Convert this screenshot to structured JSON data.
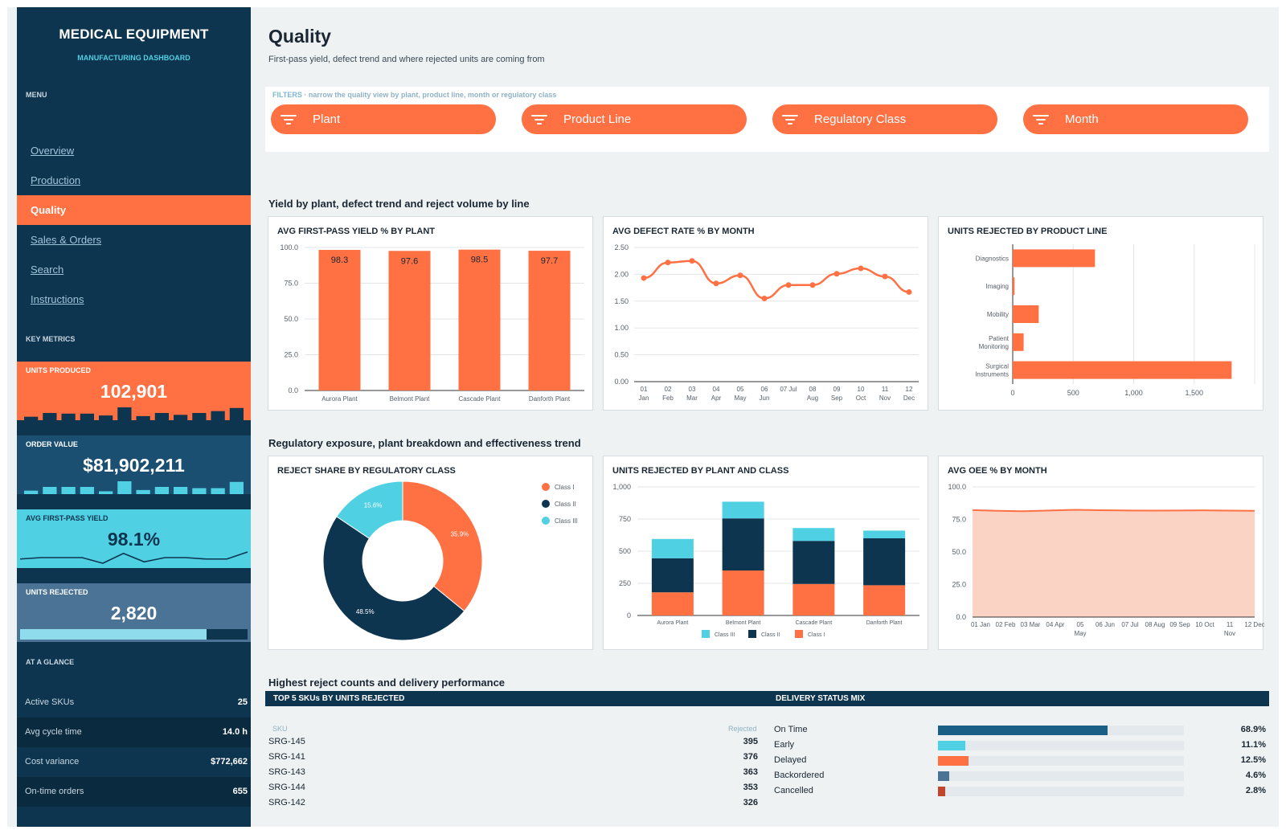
{
  "sidebar": {
    "brand_title": "MEDICAL EQUIPMENT",
    "brand_subtitle": "MANUFACTURING DASHBOARD",
    "menu_heading": "MENU",
    "nav": [
      "Overview",
      "Production",
      "Quality",
      "Sales & Orders",
      "Search",
      "Instructions"
    ],
    "active_nav": "Quality",
    "key_metrics_heading": "KEY METRICS",
    "kpis": {
      "units_produced": {
        "label": "UNITS PRODUCED",
        "value": "102,901",
        "bg": "#ff7043",
        "spark": [
          3,
          9,
          8,
          8,
          5,
          18,
          4,
          9,
          6,
          9,
          12,
          17
        ]
      },
      "order_value": {
        "label": "ORDER VALUE",
        "value": "$81,902,211",
        "bg": "#1b4f72",
        "spark": [
          3,
          9,
          9,
          9,
          2,
          18,
          4,
          9,
          9,
          7,
          7,
          17
        ]
      },
      "first_pass_yield": {
        "label": "AVG FIRST-PASS YIELD",
        "value": "98.1%",
        "bg": "#4fd0e3",
        "spark": [
          98.0,
          98.1,
          98.1,
          98.1,
          97.7,
          98.4,
          97.8,
          98.1,
          98.1,
          98.0,
          98.0,
          98.5
        ]
      },
      "units_rejected": {
        "label": "UNITS REJECTED",
        "value": "2,820",
        "bg": "#4a7396",
        "progress": 0.82
      }
    },
    "glance_heading": "AT A GLANCE",
    "glance": [
      {
        "label": "Active SKUs",
        "value": "25"
      },
      {
        "label": "Avg cycle time",
        "value": "14.0 h"
      },
      {
        "label": "Cost variance",
        "value": "$772,662"
      },
      {
        "label": "On-time orders",
        "value": "655"
      }
    ]
  },
  "header": {
    "title": "Quality",
    "subtitle": "First-pass yield, defect trend and where rejected units are coming from"
  },
  "filters": {
    "label": "FILTERS",
    "hint": "narrow the quality view by plant, product line, month or regulatory class",
    "pills": [
      "Plant",
      "Product Line",
      "Regulatory Class",
      "Month"
    ]
  },
  "sections": {
    "row1": "Yield by plant, defect trend and reject volume by line",
    "row2": "Regulatory exposure, plant breakdown and effectiveness trend",
    "row3": "Highest reject counts and delivery performance"
  },
  "colors": {
    "accent": "#ff7043",
    "navy": "#0e3550",
    "cyan": "#4fd0e3",
    "steel": "#1b5e86"
  },
  "chart_data": [
    {
      "id": "yield_by_plant",
      "type": "bar",
      "title": "AVG FIRST-PASS YIELD % BY PLANT",
      "categories": [
        "Aurora Plant",
        "Belmont Plant",
        "Cascade Plant",
        "Danforth Plant"
      ],
      "values": [
        98.3,
        97.6,
        98.5,
        97.7
      ],
      "ylim": [
        0,
        100
      ],
      "yticks": [
        "0.0",
        "25.0",
        "50.0",
        "75.0",
        "100.0"
      ]
    },
    {
      "id": "defect_by_month",
      "type": "line",
      "title": "AVG DEFECT RATE % BY MONTH",
      "categories": [
        "01 Jan",
        "02 Feb",
        "03 Mar",
        "04 Apr",
        "05 May",
        "06 Jun",
        "07 Jul",
        "08 Aug",
        "09 Sep",
        "10 Oct",
        "11 Nov",
        "12 Dec"
      ],
      "values": [
        1.93,
        2.22,
        2.25,
        1.83,
        1.98,
        1.55,
        1.8,
        1.8,
        2.01,
        2.11,
        1.96,
        1.67
      ],
      "ylim": [
        0,
        2.5
      ],
      "yticks": [
        "0.00",
        "0.50",
        "1.00",
        "1.50",
        "2.00",
        "2.50"
      ]
    },
    {
      "id": "rejected_by_line",
      "type": "bar",
      "title": "UNITS REJECTED BY PRODUCT LINE",
      "orientation": "horizontal",
      "categories": [
        "Diagnostics",
        "Imaging",
        "Mobility",
        "Patient Monitoring",
        "Surgical Instruments"
      ],
      "values": [
        680,
        15,
        215,
        90,
        1810
      ],
      "xlim": [
        0,
        2000
      ],
      "xticks": [
        "0",
        "500",
        "1,000",
        "1,500"
      ]
    },
    {
      "id": "reject_share_class",
      "type": "pie",
      "title": "REJECT SHARE BY REGULATORY CLASS",
      "labels": [
        "Class I",
        "Class II",
        "Class III"
      ],
      "values": [
        35.9,
        48.5,
        15.6
      ],
      "value_labels": [
        "35.9%",
        "48.5%",
        "15.6%"
      ]
    },
    {
      "id": "rejected_by_plant_class",
      "type": "bar",
      "stacked": true,
      "title": "UNITS REJECTED BY PLANT AND CLASS",
      "categories": [
        "Aurora Plant",
        "Belmont Plant",
        "Cascade Plant",
        "Danforth Plant"
      ],
      "series": [
        {
          "name": "Class I",
          "values": [
            180,
            350,
            245,
            235
          ]
        },
        {
          "name": "Class II",
          "values": [
            265,
            405,
            335,
            365
          ]
        },
        {
          "name": "Class III",
          "values": [
            150,
            130,
            100,
            60
          ]
        }
      ],
      "legend_order": [
        "Class III",
        "Class II",
        "Class I"
      ],
      "ylim": [
        0,
        1000
      ],
      "yticks": [
        "0",
        "250",
        "500",
        "750",
        "1,000"
      ]
    },
    {
      "id": "oee_by_month",
      "type": "area",
      "title": "AVG OEE % BY MONTH",
      "categories": [
        "01 Jan",
        "02 Feb",
        "03 Mar",
        "04 Apr",
        "05 May",
        "06 Jun",
        "07 Jul",
        "08 Aug",
        "09 Sep",
        "10 Oct",
        "11 Nov",
        "12 Dec"
      ],
      "values": [
        82.2,
        81.6,
        81.3,
        81.9,
        82.4,
        82.1,
        81.9,
        81.8,
        81.9,
        82.0,
        81.8,
        81.6
      ],
      "ylim": [
        0,
        100
      ],
      "yticks": [
        "0.0",
        "25.0",
        "50.0",
        "75.0",
        "100.0"
      ]
    }
  ],
  "top_skus": {
    "title": "TOP 5 SKUs BY UNITS REJECTED",
    "col_sku": "SKU",
    "col_rejected": "Rejected",
    "rows": [
      {
        "sku": "SRG-145",
        "rejected": "395"
      },
      {
        "sku": "SRG-141",
        "rejected": "376"
      },
      {
        "sku": "SRG-143",
        "rejected": "363"
      },
      {
        "sku": "SRG-144",
        "rejected": "353"
      },
      {
        "sku": "SRG-142",
        "rejected": "326"
      }
    ]
  },
  "delivery": {
    "title": "DELIVERY STATUS MIX",
    "rows": [
      {
        "label": "On Time",
        "value": "68.9%",
        "share": 0.689,
        "color": "#1b5e86"
      },
      {
        "label": "Early",
        "value": "11.1%",
        "share": 0.111,
        "color": "#4fd0e3"
      },
      {
        "label": "Delayed",
        "value": "12.5%",
        "share": 0.125,
        "color": "#ff7043"
      },
      {
        "label": "Backordered",
        "value": "4.6%",
        "share": 0.046,
        "color": "#4a7396"
      },
      {
        "label": "Cancelled",
        "value": "2.8%",
        "share": 0.028,
        "color": "#c0452a"
      }
    ]
  }
}
